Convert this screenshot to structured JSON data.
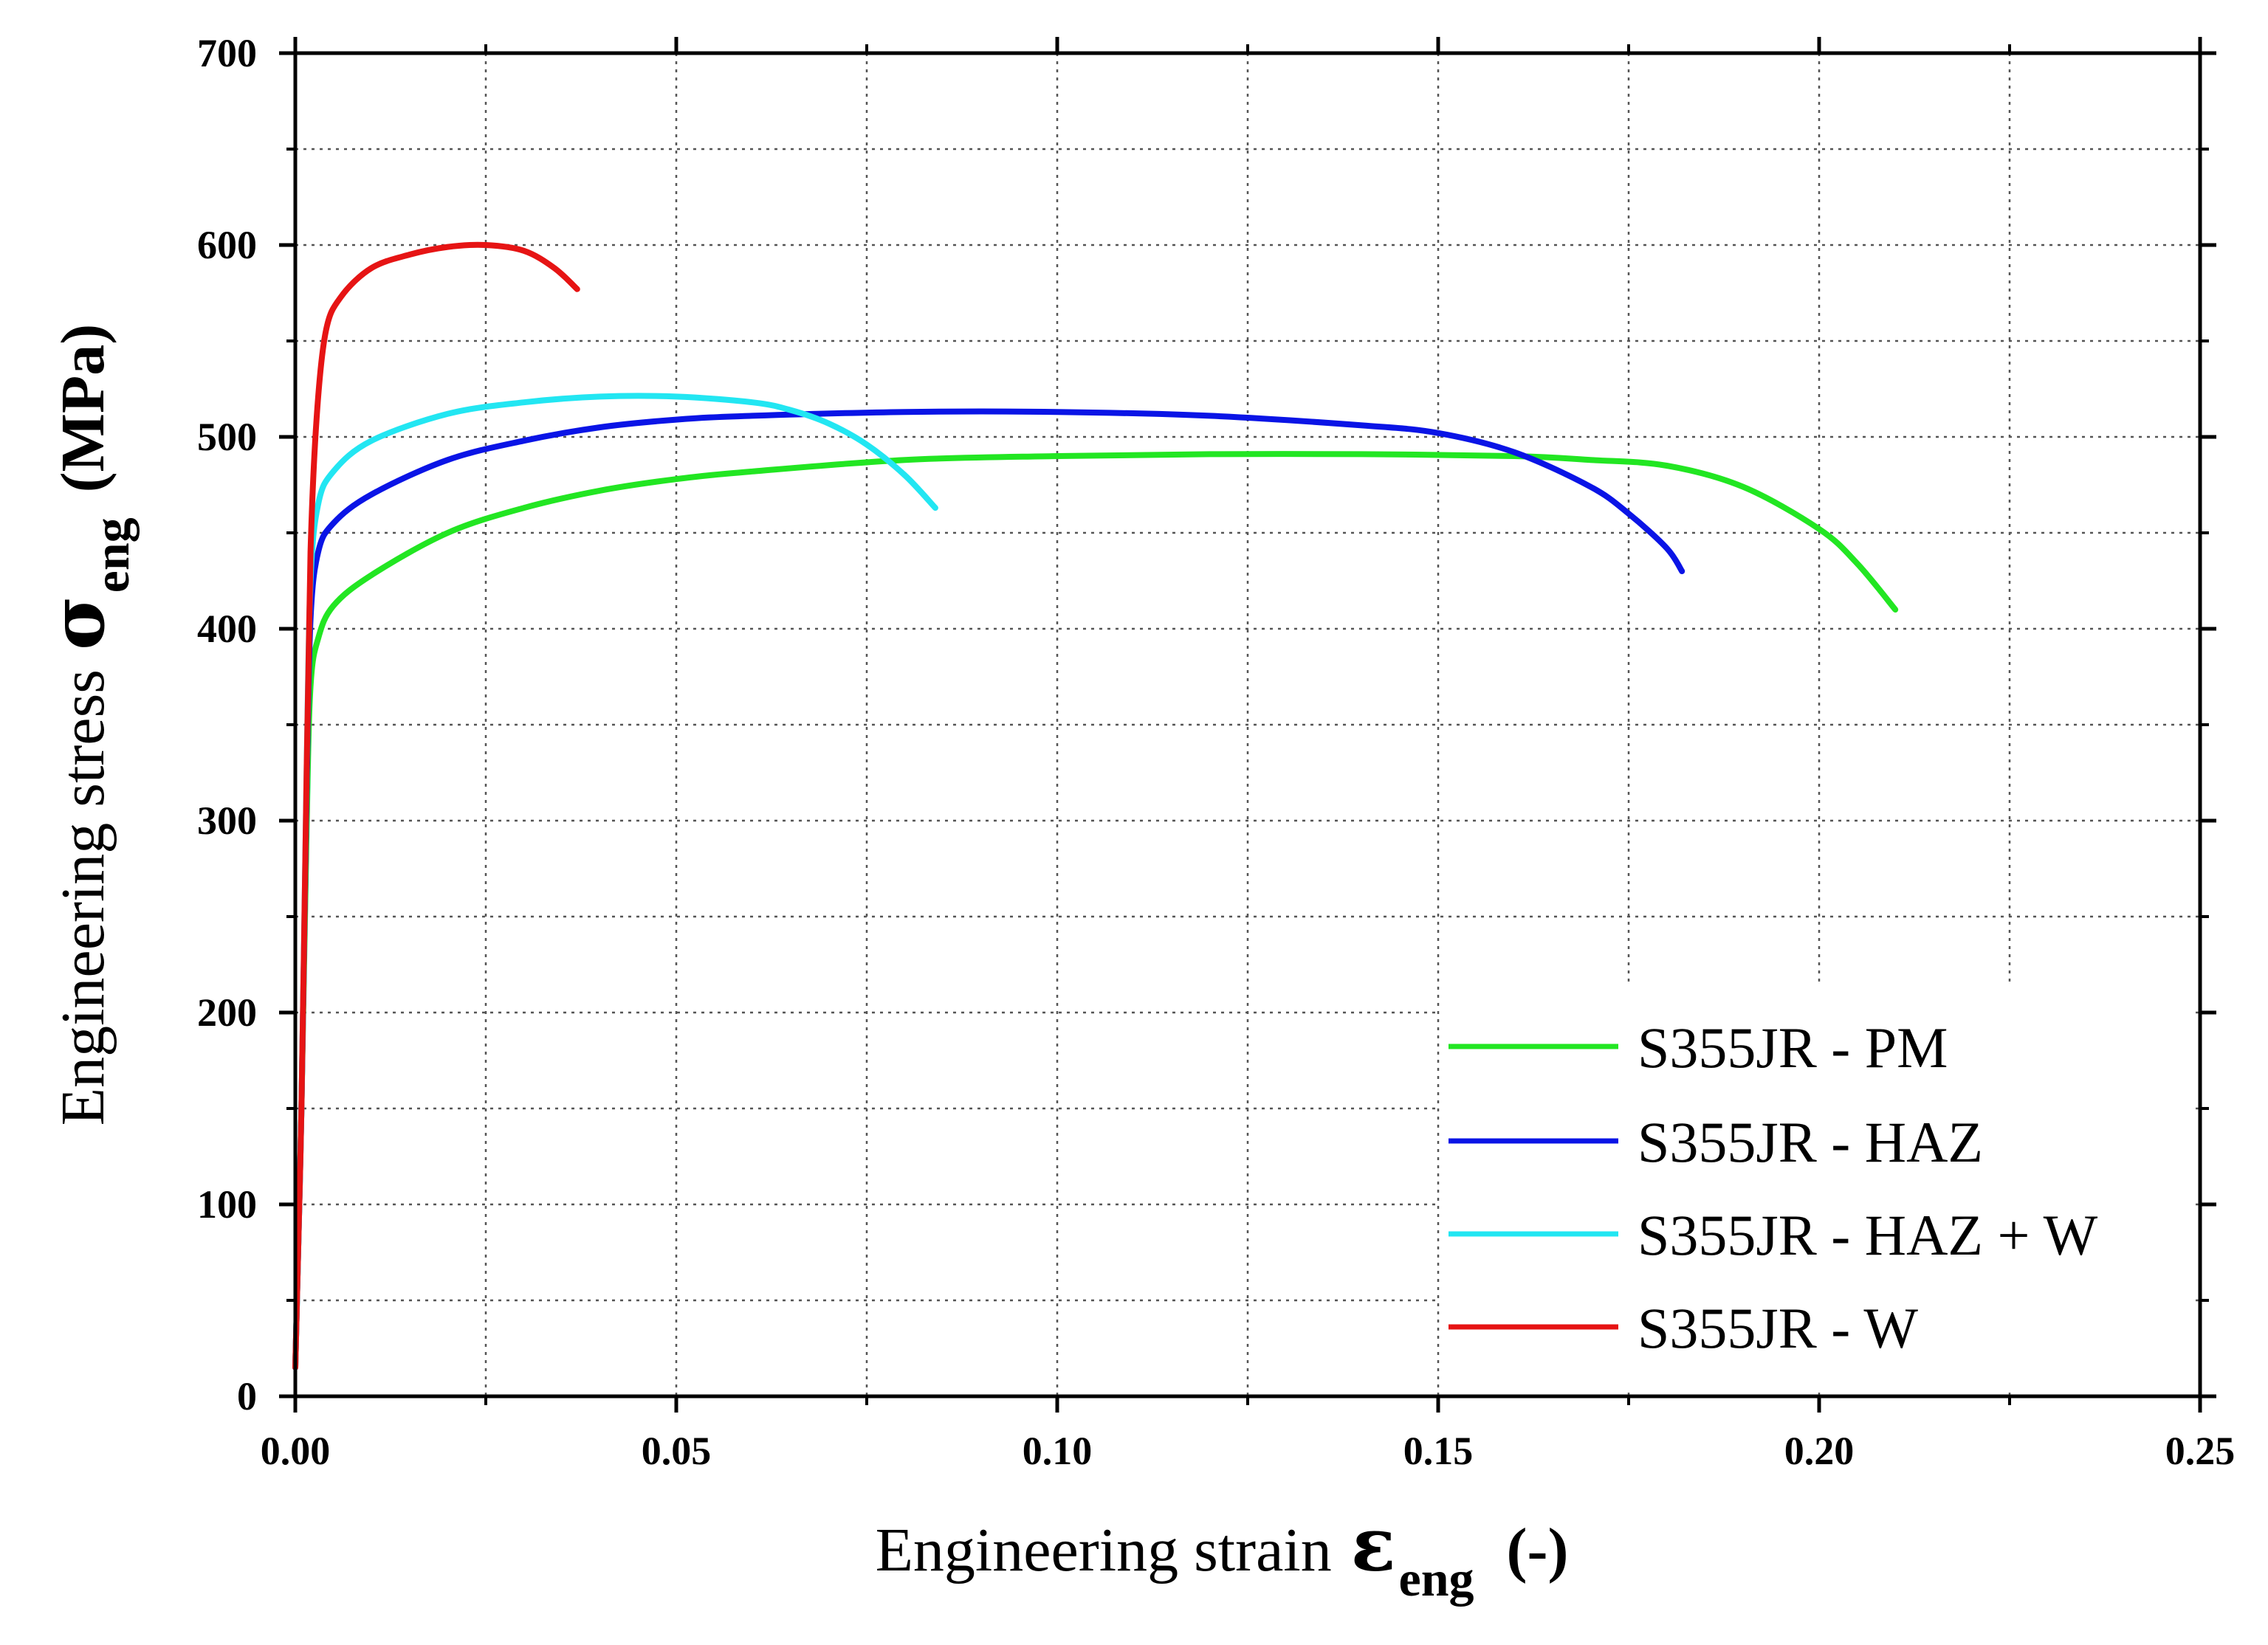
{
  "chart_data": {
    "type": "line",
    "title": "",
    "xlabel": {
      "text": "Engineering strain",
      "symbol": "ε",
      "subscript": "eng",
      "unit": "(-)"
    },
    "ylabel": {
      "text": "Engineering stress",
      "symbol": "σ",
      "subscript": "eng",
      "unit": "(MPa)"
    },
    "xlim": [
      0,
      0.25
    ],
    "ylim": [
      0,
      700
    ],
    "x_major_ticks": [
      0,
      0.05,
      0.1,
      0.15,
      0.2,
      0.25
    ],
    "x_tick_labels": [
      "0.00",
      "0.05",
      "0.10",
      "0.15",
      "0.20",
      "0.25"
    ],
    "x_minor_ticks": [
      0.025,
      0.075,
      0.125,
      0.175,
      0.225
    ],
    "y_major_ticks": [
      0,
      100,
      200,
      300,
      400,
      500,
      600,
      700
    ],
    "y_tick_labels": [
      "0",
      "100",
      "200",
      "300",
      "400",
      "500",
      "600",
      "700"
    ],
    "y_minor_ticks": [
      50,
      150,
      250,
      350,
      450,
      550,
      650
    ],
    "grid": true,
    "legend_position": "bottom-right",
    "series": [
      {
        "name": "S355JR - PM",
        "color": "#22e622",
        "points": [
          [
            0,
            15
          ],
          [
            0.0008,
            150
          ],
          [
            0.0015,
            300
          ],
          [
            0.002,
            370
          ],
          [
            0.003,
            395
          ],
          [
            0.005,
            412
          ],
          [
            0.01,
            428
          ],
          [
            0.02,
            450
          ],
          [
            0.03,
            463
          ],
          [
            0.04,
            472
          ],
          [
            0.05,
            478
          ],
          [
            0.06,
            482
          ],
          [
            0.08,
            488
          ],
          [
            0.1,
            490
          ],
          [
            0.12,
            491
          ],
          [
            0.14,
            491
          ],
          [
            0.16,
            490
          ],
          [
            0.17,
            488
          ],
          [
            0.18,
            485
          ],
          [
            0.19,
            474
          ],
          [
            0.2,
            452
          ],
          [
            0.205,
            434
          ],
          [
            0.21,
            410
          ]
        ]
      },
      {
        "name": "S355JR - HAZ",
        "color": "#0a14e6",
        "points": [
          [
            0,
            15
          ],
          [
            0.0008,
            150
          ],
          [
            0.0015,
            320
          ],
          [
            0.002,
            405
          ],
          [
            0.003,
            440
          ],
          [
            0.005,
            455
          ],
          [
            0.01,
            470
          ],
          [
            0.02,
            488
          ],
          [
            0.03,
            498
          ],
          [
            0.04,
            505
          ],
          [
            0.05,
            509
          ],
          [
            0.06,
            511
          ],
          [
            0.08,
            513
          ],
          [
            0.1,
            513
          ],
          [
            0.12,
            511
          ],
          [
            0.14,
            506
          ],
          [
            0.15,
            502
          ],
          [
            0.16,
            492
          ],
          [
            0.17,
            474
          ],
          [
            0.175,
            460
          ],
          [
            0.18,
            442
          ],
          [
            0.182,
            430
          ]
        ]
      },
      {
        "name": "S355JR - HAZ + W",
        "color": "#22e6f2",
        "points": [
          [
            0,
            15
          ],
          [
            0.0008,
            150
          ],
          [
            0.0015,
            330
          ],
          [
            0.002,
            425
          ],
          [
            0.003,
            465
          ],
          [
            0.005,
            482
          ],
          [
            0.01,
            498
          ],
          [
            0.02,
            512
          ],
          [
            0.03,
            518
          ],
          [
            0.04,
            521
          ],
          [
            0.05,
            521
          ],
          [
            0.06,
            518
          ],
          [
            0.065,
            514
          ],
          [
            0.07,
            507
          ],
          [
            0.075,
            496
          ],
          [
            0.08,
            480
          ],
          [
            0.084,
            463
          ]
        ]
      },
      {
        "name": "S355JR - W",
        "color": "#e61414",
        "points": [
          [
            0,
            15
          ],
          [
            0.0008,
            150
          ],
          [
            0.0015,
            330
          ],
          [
            0.002,
            440
          ],
          [
            0.0028,
            510
          ],
          [
            0.004,
            555
          ],
          [
            0.006,
            573
          ],
          [
            0.01,
            588
          ],
          [
            0.015,
            595
          ],
          [
            0.02,
            599
          ],
          [
            0.025,
            600
          ],
          [
            0.03,
            597
          ],
          [
            0.034,
            588
          ],
          [
            0.037,
            577
          ]
        ]
      }
    ]
  }
}
